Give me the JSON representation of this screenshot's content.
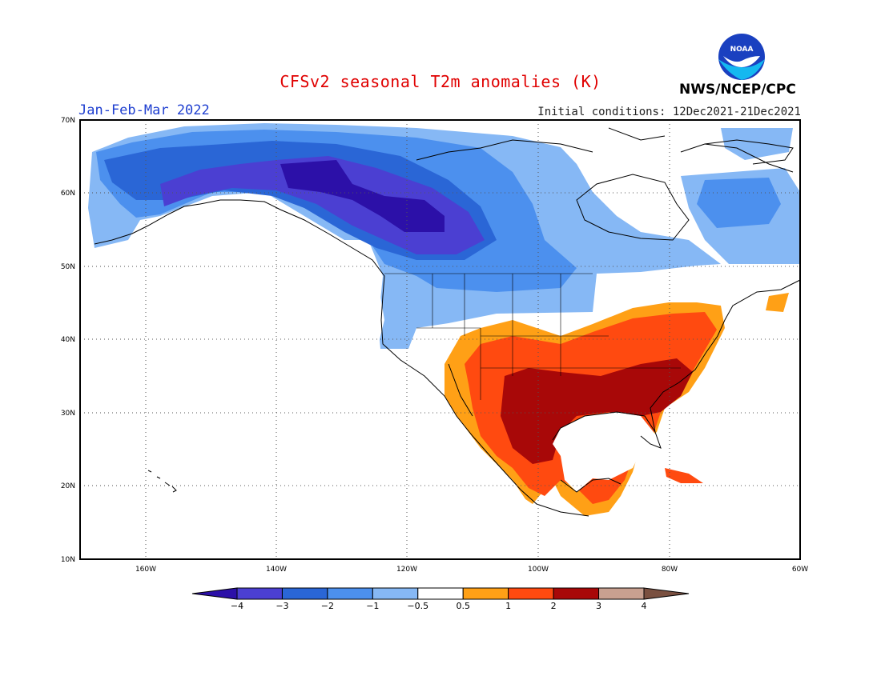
{
  "header": {
    "title": "CFSv2 seasonal T2m anomalies (K)",
    "season": "Jan-Feb-Mar 2022",
    "initial_conditions": "Initial conditions: 12Dec2021-21Dec2021",
    "agency": "NWS/NCEP/CPC",
    "logo_text": "NOAA"
  },
  "map": {
    "lat_labels": [
      "70N",
      "60N",
      "50N",
      "40N",
      "30N",
      "20N",
      "10N"
    ],
    "lon_labels": [
      "160W",
      "140W",
      "120W",
      "100W",
      "80W",
      "60W"
    ],
    "lat_range": [
      10,
      70
    ],
    "lon_range": [
      -170,
      -60
    ],
    "projection": "cylindrical-equidistant"
  },
  "colorbar": {
    "ticks": [
      "-4",
      "-3",
      "-2",
      "-1",
      "-0.5",
      "0.5",
      "1",
      "2",
      "3",
      "4"
    ],
    "colors": [
      "#2c10a8",
      "#4b3fd2",
      "#2a66d6",
      "#4c90ee",
      "#86b8f5",
      "#ffffff",
      "#ffa016",
      "#ff4a10",
      "#a80808",
      "#c8a090",
      "#7a5040"
    ]
  },
  "colors": {
    "title": "#e00000",
    "season": "#2040d0",
    "logo_blue": "#1a40c0",
    "logo_cyan": "#14b8f0"
  }
}
